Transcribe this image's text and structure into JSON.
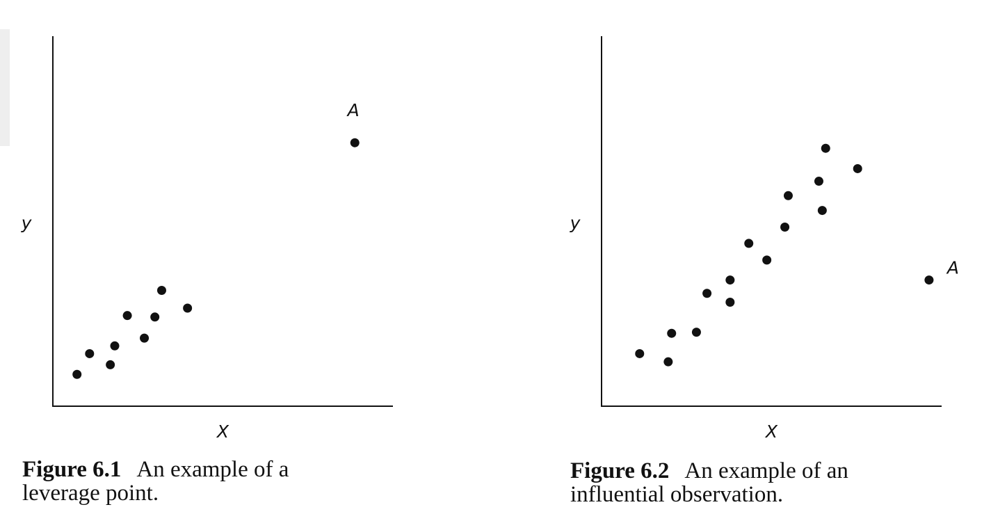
{
  "figures": [
    {
      "caption": {
        "figure_number": "Figure 6.1",
        "text": "An example of a leverage point."
      },
      "chart_data": {
        "type": "scatter",
        "xlabel": "X",
        "ylabel": "y",
        "xlim": [
          0,
          100
        ],
        "ylim": [
          0,
          100
        ],
        "grid": false,
        "ticks": false,
        "points": [
          {
            "x": 7.1,
            "y": 8.6
          },
          {
            "x": 10.8,
            "y": 14.2
          },
          {
            "x": 16.9,
            "y": 11.2
          },
          {
            "x": 18.2,
            "y": 16.3
          },
          {
            "x": 21.9,
            "y": 24.5
          },
          {
            "x": 26.9,
            "y": 18.4
          },
          {
            "x": 30.0,
            "y": 24.1
          },
          {
            "x": 32.0,
            "y": 31.3
          },
          {
            "x": 39.6,
            "y": 26.5
          },
          {
            "x": 88.8,
            "y": 71.2,
            "label": "A"
          }
        ]
      }
    },
    {
      "caption": {
        "figure_number": "Figure 6.2",
        "text": "An example of an influential observation."
      },
      "chart_data": {
        "type": "scatter",
        "xlabel": "X",
        "ylabel": "y",
        "xlim": [
          0,
          100
        ],
        "ylim": [
          0,
          100
        ],
        "grid": false,
        "ticks": false,
        "points": [
          {
            "x": 11.2,
            "y": 14.2
          },
          {
            "x": 19.6,
            "y": 12.0
          },
          {
            "x": 20.6,
            "y": 19.7
          },
          {
            "x": 27.9,
            "y": 20.0
          },
          {
            "x": 31.0,
            "y": 30.5
          },
          {
            "x": 37.8,
            "y": 28.1
          },
          {
            "x": 37.8,
            "y": 34.1
          },
          {
            "x": 43.3,
            "y": 44.0
          },
          {
            "x": 48.6,
            "y": 39.5
          },
          {
            "x": 53.9,
            "y": 48.4
          },
          {
            "x": 54.9,
            "y": 56.9
          },
          {
            "x": 64.9,
            "y": 52.9
          },
          {
            "x": 63.9,
            "y": 60.8
          },
          {
            "x": 65.9,
            "y": 69.7
          },
          {
            "x": 75.3,
            "y": 64.2
          },
          {
            "x": 96.3,
            "y": 34.1,
            "label": "A"
          }
        ]
      }
    }
  ]
}
